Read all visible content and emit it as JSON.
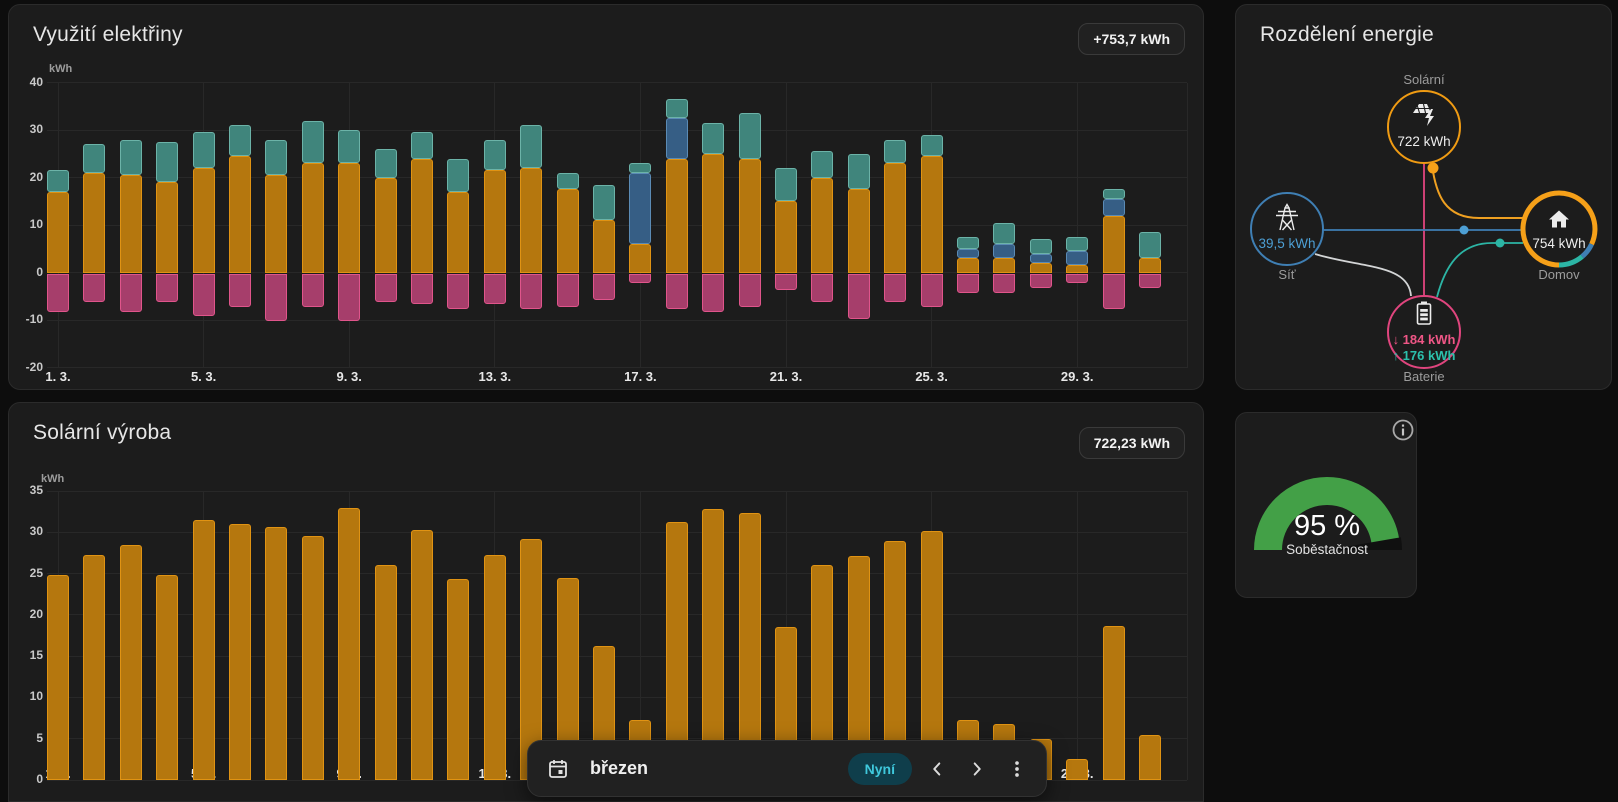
{
  "cards": {
    "usage": {
      "title": "Využití elektřiny",
      "badge": "+753,7 kWh",
      "unit": "kWh"
    },
    "distribution": {
      "title": "Rozdělení energie",
      "solar": {
        "label": "Solární",
        "value": "722 kWh"
      },
      "grid": {
        "label": "Síť",
        "value": "39,5 kWh"
      },
      "home": {
        "label": "Domov",
        "value": "754 kWh"
      },
      "battery": {
        "label": "Baterie",
        "charge": "↓ 184 kWh",
        "discharge": "↑ 176 kWh"
      }
    },
    "gauge": {
      "value": "95 %",
      "label": "Soběstačnost",
      "percent": 95
    },
    "solar_production": {
      "title": "Solární výroba",
      "badge": "722,23 kWh",
      "unit": "kWh"
    }
  },
  "toolbar": {
    "period": "březen",
    "now": "Nyní"
  },
  "colors": {
    "solar_bar": "#b5770e",
    "solar_bar_edge": "#e09313",
    "grid_bar": "#365e85",
    "grid_bar_edge": "#5b8bb5",
    "battery_bar": "#40857c",
    "battery_bar_edge": "#6cb3a8",
    "return_bar": "#a63e6b",
    "return_bar_edge": "#e0558b",
    "gauge_green": "#43a047",
    "flow_orange": "#efa021",
    "flow_blue": "#3f7fb4",
    "flow_teal": "#2cb5a5",
    "flow_pink": "#e0457e",
    "flow_grey": "#d3d5d6",
    "accent_cyan": "#3fc8dc"
  },
  "chart_data": [
    {
      "type": "bar",
      "stacked": true,
      "title": "Využití elektřiny",
      "ylabel": "kWh",
      "ylim": [
        -20,
        40
      ],
      "yticks": [
        40,
        30,
        20,
        10,
        0,
        -10,
        -20
      ],
      "x_tick_days": [
        1,
        5,
        9,
        13,
        17,
        21,
        25,
        29
      ],
      "x_tick_labels": [
        "1. 3.",
        "5. 3.",
        "9. 3.",
        "13. 3.",
        "17. 3.",
        "21. 3.",
        "25. 3.",
        "29. 3."
      ],
      "grid": true,
      "legend": "none",
      "series": [
        {
          "name": "solar",
          "fill": "#b5770e",
          "edge": "#e09313",
          "values": [
            17,
            21,
            20.5,
            19,
            22,
            24.5,
            20.5,
            23,
            23,
            20,
            24,
            17,
            21.5,
            22,
            17.5,
            11,
            6,
            24,
            25,
            24,
            15,
            20,
            17.5,
            23,
            24.5,
            3,
            3,
            2,
            1.5,
            12,
            3
          ]
        },
        {
          "name": "grid",
          "fill": "#365e85",
          "edge": "#5b8bb5",
          "values": [
            0,
            0,
            0,
            0,
            0,
            0,
            0,
            0,
            0,
            0,
            0,
            0,
            0,
            0,
            0,
            0,
            15,
            8.5,
            0,
            0,
            0,
            0,
            0,
            0,
            0,
            2,
            3,
            2,
            3,
            3.5,
            0
          ]
        },
        {
          "name": "battery",
          "fill": "#40857c",
          "edge": "#6cb3a8",
          "values": [
            4.5,
            6,
            7.5,
            8.5,
            7.5,
            6.5,
            7.5,
            9,
            7,
            6,
            5.5,
            7,
            6.5,
            9,
            3.5,
            7.5,
            2,
            4,
            6.5,
            9.5,
            7,
            5.5,
            7.5,
            5,
            4.5,
            2.5,
            4.5,
            3,
            3,
            2,
            5.5
          ]
        },
        {
          "name": "return",
          "fill": "#a63e6b",
          "edge": "#e0558b",
          "values": [
            -8,
            -6,
            -8,
            -6,
            -9,
            -7,
            -10,
            -7,
            -10,
            -6,
            -6.5,
            -7.5,
            -6.5,
            -7.5,
            -7,
            -5.5,
            -2,
            -7.5,
            -8,
            -7,
            -3.5,
            -6,
            -9.5,
            -6,
            -7,
            -4,
            -4,
            -3,
            -2,
            -7.5,
            -3
          ]
        }
      ]
    },
    {
      "type": "bar",
      "stacked": false,
      "title": "Solární výroba",
      "ylabel": "kWh",
      "ylim": [
        0,
        35
      ],
      "yticks": [
        35,
        30,
        25,
        20,
        15,
        10,
        5,
        0
      ],
      "x_tick_days": [
        1,
        5,
        9,
        13,
        17,
        21,
        25,
        29
      ],
      "x_tick_labels": [
        "1. 3.",
        "5. 3.",
        "9. 3.",
        "13. 3.",
        "17. 3.",
        "21. 3.",
        "25. 3.",
        "29. 3."
      ],
      "grid": true,
      "legend": "none",
      "series": [
        {
          "name": "solar",
          "fill": "#b5770e",
          "edge": "#e09313",
          "values": [
            24.8,
            27.2,
            28.5,
            24.8,
            31.5,
            31,
            30.7,
            29.5,
            33,
            26,
            30.3,
            24.4,
            27.2,
            29.2,
            24.5,
            16.2,
            7.3,
            31.2,
            32.8,
            32.3,
            18.5,
            26,
            27.1,
            29,
            30.1,
            7.3,
            6.8,
            5,
            2.5,
            18.7,
            5.5
          ]
        }
      ]
    }
  ]
}
